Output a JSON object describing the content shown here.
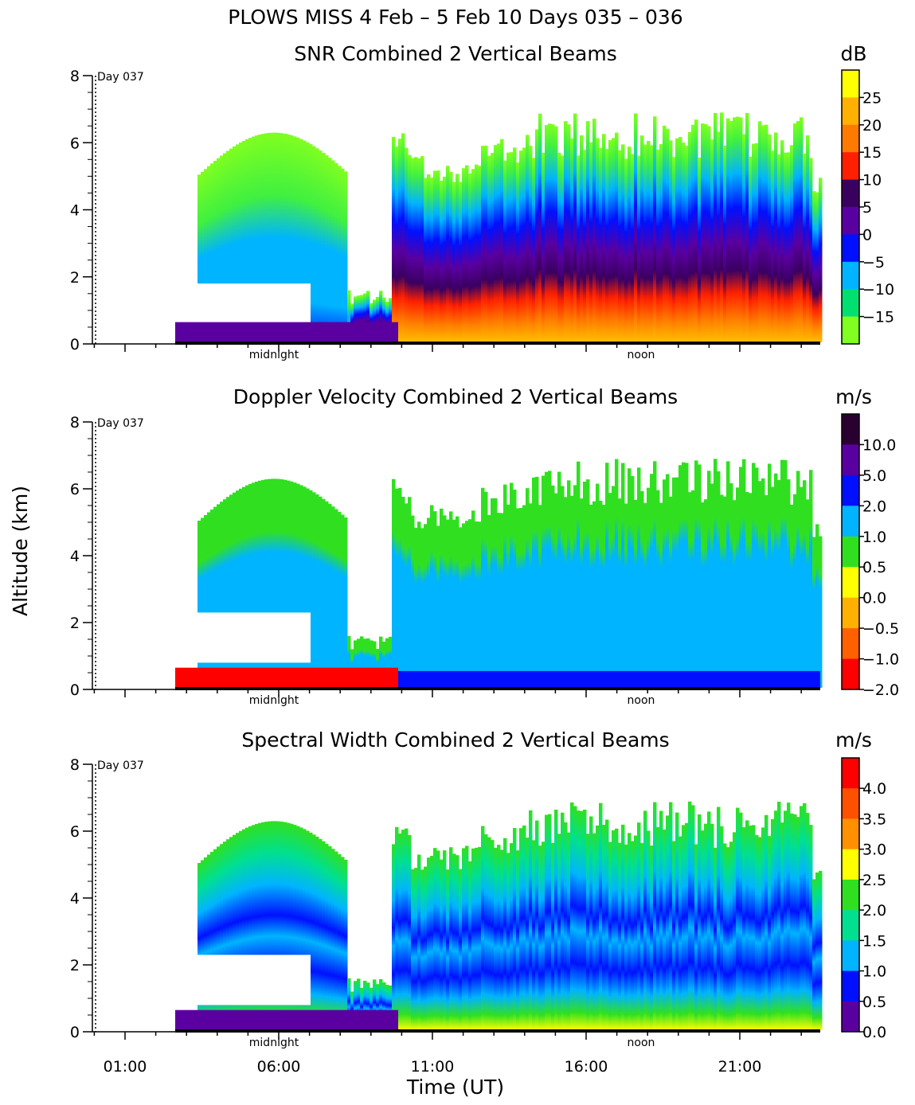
{
  "title": "PLOWS MISS    4 Feb –  5 Feb 10 Days 035 – 036",
  "ylabel": "Altitude (km)",
  "xlabel": "Time (UT)",
  "x_ticks": [
    "01:00",
    "06:00",
    "11:00",
    "16:00",
    "21:00"
  ],
  "y_ticks": [
    "0",
    "2",
    "4",
    "6",
    "8"
  ],
  "markers": {
    "day": "Day 037",
    "midnight": "midnight",
    "noon": "noon"
  },
  "chart_data": [
    {
      "type": "heatmap",
      "title": "SNR Combined 2 Vertical Beams",
      "xlabel": "Time (UT)",
      "ylabel": "Altitude (km)",
      "ylim": [
        0,
        8
      ],
      "colorbar": {
        "unit": "dB",
        "labels": [
          "25",
          "20",
          "15",
          "10",
          "5",
          "0",
          "−5",
          "−10",
          "−15"
        ],
        "colors": [
          "#ffff00",
          "#ffb000",
          "#ff7a00",
          "#ff2000",
          "#3a0060",
          "#5a00a0",
          "#0010ff",
          "#00b4ff",
          "#00e070",
          "#80ff20"
        ]
      }
    },
    {
      "type": "heatmap",
      "title": "Doppler Velocity Combined 2 Vertical Beams",
      "xlabel": "Time (UT)",
      "ylabel": "Altitude (km)",
      "ylim": [
        0,
        8
      ],
      "colorbar": {
        "unit": "m/s",
        "labels": [
          "10.0",
          "5.0",
          "2.0",
          "1.0",
          "0.5",
          "0.0",
          "−0.5",
          "−1.0",
          "−2.0"
        ],
        "colors": [
          "#2a0030",
          "#5a00a0",
          "#0010ff",
          "#00b4ff",
          "#30e020",
          "#ffff00",
          "#ffb000",
          "#ff6000",
          "#ff0000"
        ]
      }
    },
    {
      "type": "heatmap",
      "title": "Spectral Width Combined 2 Vertical Beams",
      "xlabel": "Time (UT)",
      "ylabel": "Altitude (km)",
      "ylim": [
        0,
        8
      ],
      "colorbar": {
        "unit": "m/s",
        "labels": [
          "4.0",
          "3.5",
          "3.0",
          "2.5",
          "2.0",
          "1.5",
          "1.0",
          "0.5",
          "0.0"
        ],
        "colors": [
          "#ff0000",
          "#ff5000",
          "#ff9000",
          "#ffff00",
          "#30e020",
          "#00e090",
          "#00b4ff",
          "#0010ff",
          "#5a00a0"
        ]
      }
    }
  ]
}
